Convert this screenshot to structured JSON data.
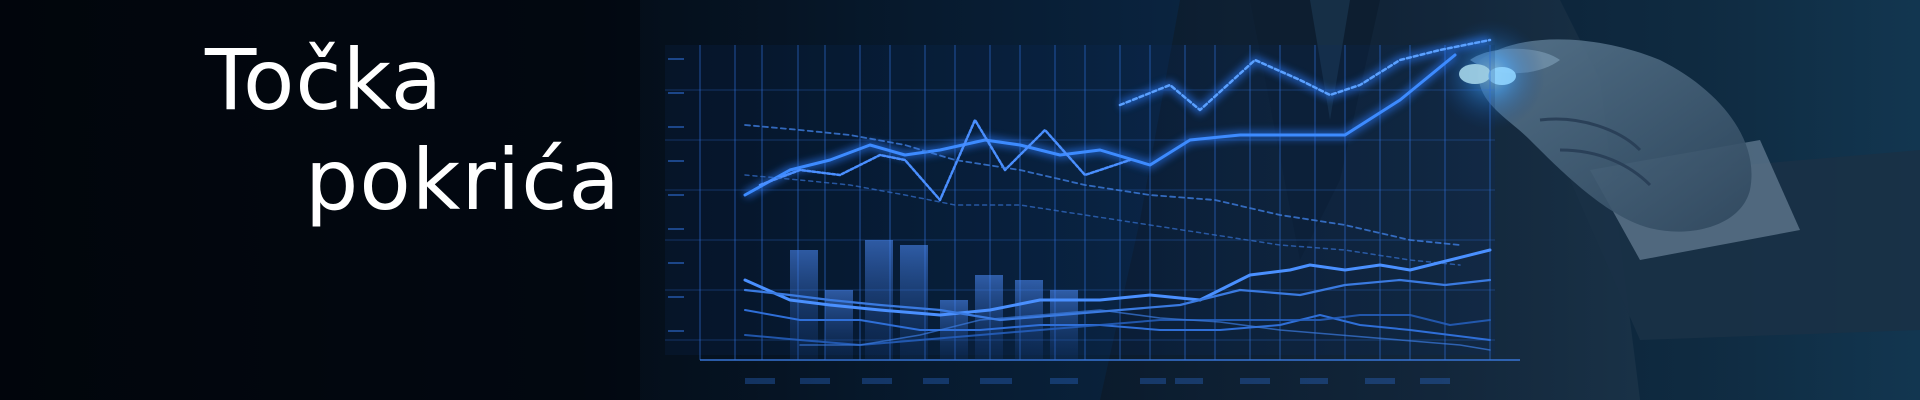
{
  "banner": {
    "title_line_1": "Točka",
    "title_line_2": "pokrića"
  },
  "colors": {
    "background": "#03080f",
    "accent_blue": "#2a7bff",
    "title_text": "#ffffff"
  }
}
